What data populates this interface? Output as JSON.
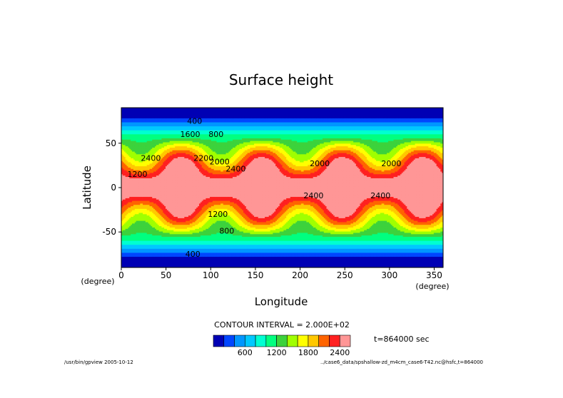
{
  "chart_data": {
    "type": "contour",
    "title": "Surface height",
    "xlabel": "Longitude",
    "ylabel": "Latitude",
    "x_unit": "(degree)",
    "y_unit": "(degree)",
    "xlim": [
      0,
      360
    ],
    "ylim": [
      -90,
      90
    ],
    "x_ticks": [
      0,
      50,
      100,
      150,
      200,
      250,
      300,
      350
    ],
    "y_ticks": [
      50,
      0,
      -50
    ],
    "contour_interval_text": "CONTOUR INTERVAL = 2.000E+02",
    "time_text": "t=864000 sec",
    "wave_centers_longitude": [
      22,
      112,
      202,
      292
    ],
    "contour_levels": [
      200,
      400,
      600,
      800,
      1000,
      1200,
      1400,
      1600,
      1800,
      2000,
      2200,
      2400,
      2600
    ],
    "colorbar_colors": [
      "#0000b4",
      "#0046ff",
      "#0096ff",
      "#00c8ff",
      "#00ffd2",
      "#00ff80",
      "#3cd23c",
      "#a0ff00",
      "#ffff00",
      "#ffc800",
      "#ff6400",
      "#ff2020",
      "#ff9696"
    ],
    "colorbar_labels": [
      "600",
      "1200",
      "1800",
      "2400"
    ],
    "contour_labels": [
      "400",
      "800",
      "1200",
      "1600",
      "2000",
      "2200",
      "2400"
    ]
  },
  "footer": {
    "left": "/usr/bin/gpview  2005-10-12",
    "right": "../case6_data/spshallow-zd_m4cm_case6-T42.nc@hsfc,t=864000"
  }
}
